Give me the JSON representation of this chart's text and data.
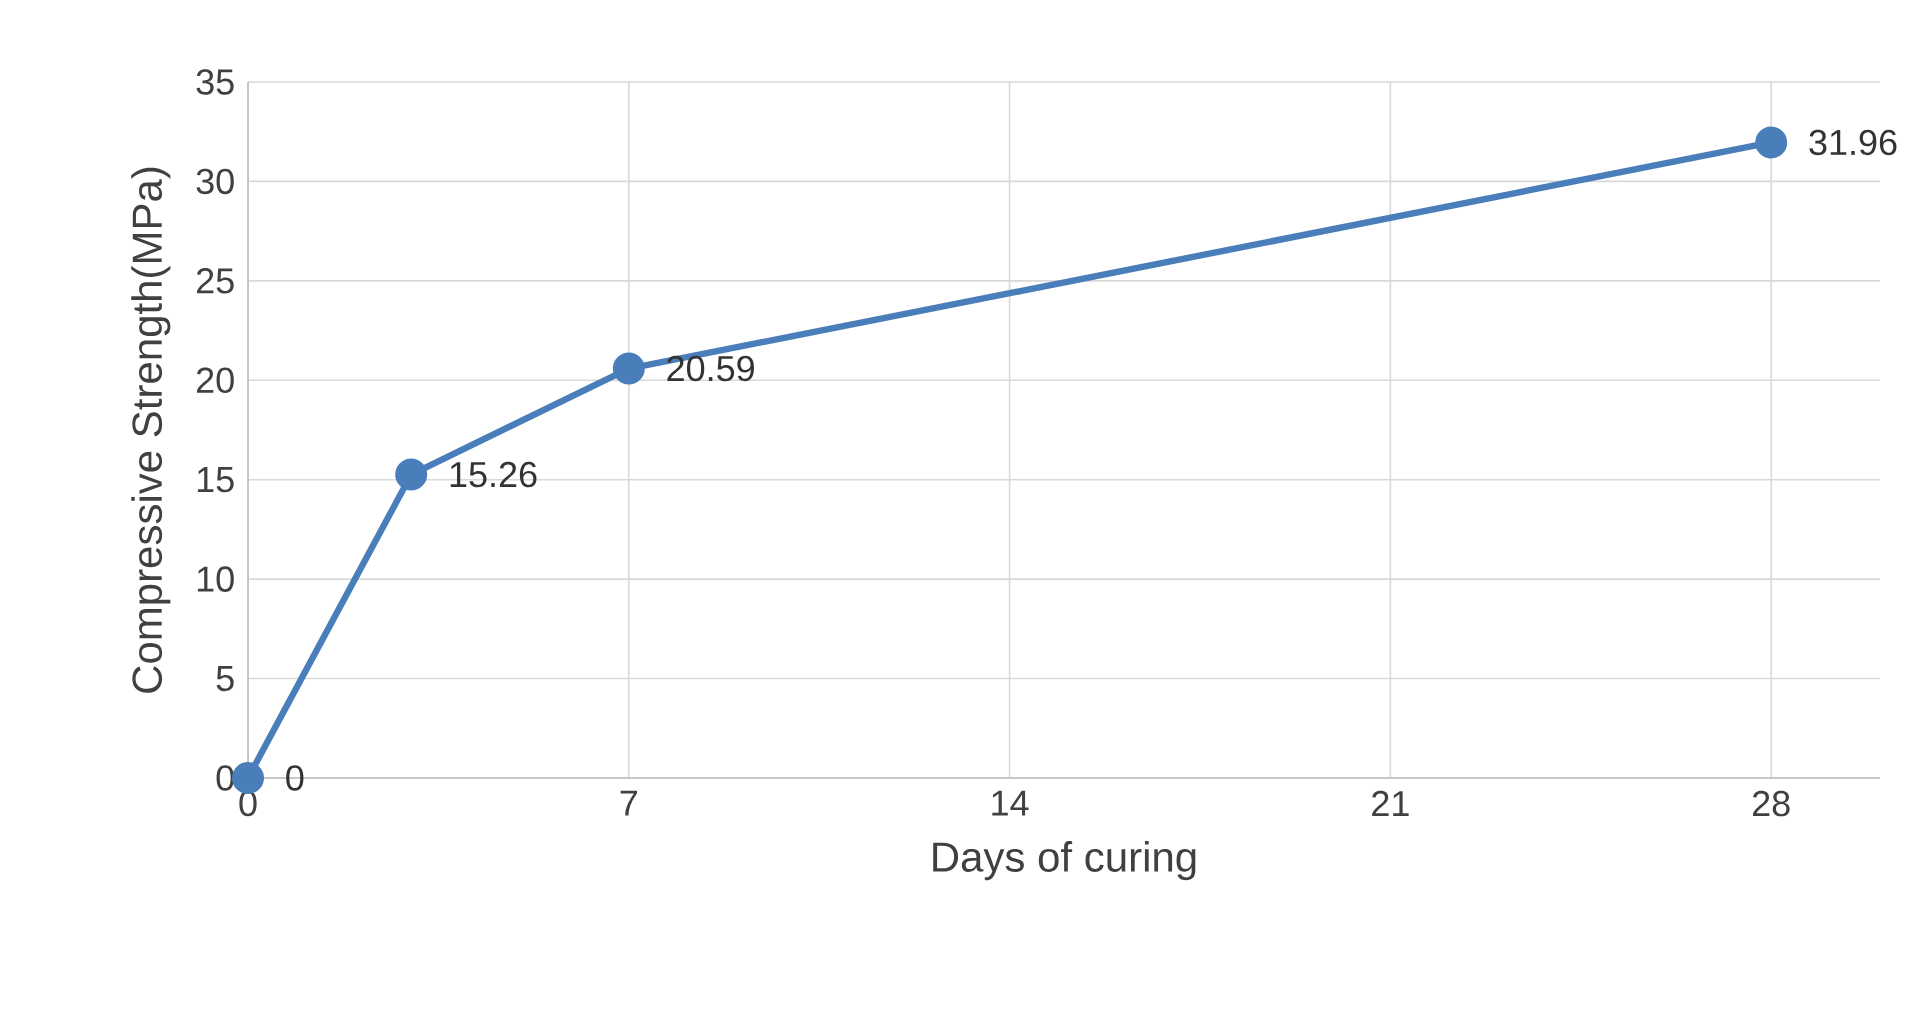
{
  "chart_data": {
    "type": "line",
    "xlabel": "Days of curing",
    "ylabel": "Compressive Strength(MPa)",
    "x": [
      0,
      3,
      7,
      28
    ],
    "series": [
      {
        "color": "#4a7ebb",
        "values": [
          0,
          15.26,
          20.59,
          31.96
        ]
      }
    ],
    "xlim": [
      0,
      30
    ],
    "ylim": [
      0,
      35
    ],
    "xticks": [
      0,
      7,
      14,
      21,
      28
    ],
    "yticks": [
      0,
      5,
      10,
      15,
      20,
      25,
      30,
      35
    ],
    "grid": true,
    "marker": "circle",
    "line_style": "solid",
    "data_labels": true
  }
}
